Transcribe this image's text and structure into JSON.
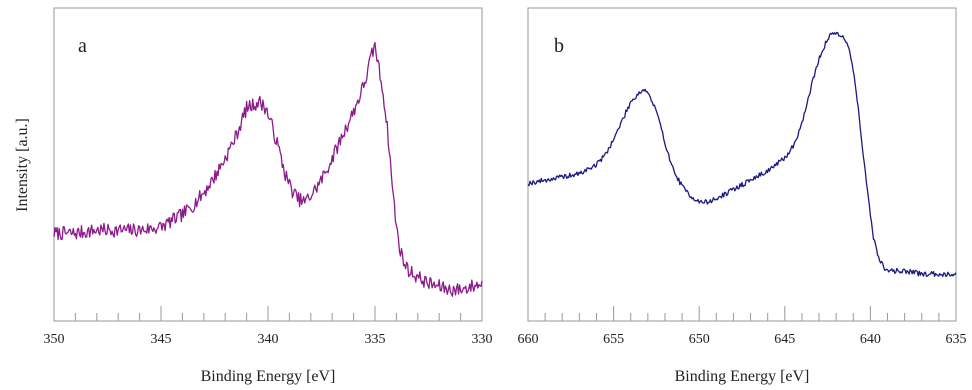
{
  "chart_data": [
    {
      "type": "line",
      "panel_label": "a",
      "xlabel": "Binding Energy [eV]",
      "ylabel": "Intensity [a.u.]",
      "xlim": [
        350,
        330
      ],
      "ylim": [
        0,
        100
      ],
      "x_reversed": true,
      "y_tick_labels": false,
      "grid": false,
      "x_ticks": [
        350,
        345,
        340,
        335,
        330
      ],
      "x_tick_labels": [
        "350",
        "345",
        "340",
        "335",
        "330"
      ],
      "line_color": "#8B1A8B",
      "noise": 2.2,
      "series": [
        {
          "x": [
            350,
            349,
            348,
            347,
            346,
            345,
            344.5,
            344,
            343.5,
            343,
            342.5,
            342,
            341.5,
            341,
            340.7,
            340.4,
            340.1,
            339.8,
            339.5,
            339.2,
            338.9,
            338.6,
            338.3,
            338,
            337.6,
            337.2,
            336.8,
            336.4,
            336,
            335.7,
            335.4,
            335.2,
            335.0,
            334.8,
            334.6,
            334.4,
            334.2,
            334.0,
            333.8,
            333.6,
            333.4,
            333.0,
            332.5,
            332,
            331.5,
            331,
            330.5,
            330
          ],
          "y": [
            28,
            28,
            29,
            29,
            29,
            30,
            32,
            34,
            37,
            41,
            46,
            52,
            59,
            68,
            69,
            70,
            68,
            62,
            55,
            47,
            42,
            39,
            38,
            40,
            44,
            49,
            55,
            61,
            67,
            72,
            78,
            84,
            88,
            80,
            72,
            60,
            44,
            30,
            22,
            18,
            16,
            14,
            12,
            11,
            10,
            10,
            11,
            12
          ]
        }
      ]
    },
    {
      "type": "line",
      "panel_label": "b",
      "xlabel": "Binding Energy [eV]",
      "xlim": [
        660,
        635
      ],
      "ylim": [
        0,
        100
      ],
      "x_reversed": true,
      "y_tick_labels": false,
      "grid": false,
      "x_ticks": [
        660,
        655,
        650,
        645,
        640,
        635
      ],
      "x_tick_labels": [
        "660",
        "655",
        "650",
        "645",
        "640",
        "635"
      ],
      "line_color": "#1A1A80",
      "noise": 0.8,
      "series": [
        {
          "x": [
            660,
            659,
            658,
            657,
            656,
            655.5,
            655,
            654.5,
            654,
            653.5,
            653.2,
            653,
            652.5,
            652,
            651.5,
            651,
            650.5,
            650,
            649.5,
            649,
            648,
            647,
            646,
            645.5,
            645,
            644.5,
            644,
            643.5,
            643,
            642.5,
            642.2,
            641.9,
            641.6,
            641.3,
            641.0,
            640.7,
            640.4,
            640.1,
            639.8,
            639.5,
            639.2,
            639.0,
            638.5,
            638,
            637,
            636,
            635
          ],
          "y": [
            44,
            45,
            46,
            47,
            50,
            53,
            58,
            64,
            70,
            73,
            74,
            73,
            67,
            57,
            48,
            43,
            40,
            38,
            38,
            39,
            42,
            45,
            48,
            50,
            52,
            56,
            63,
            74,
            84,
            90,
            92,
            92,
            91,
            88,
            80,
            68,
            52,
            38,
            26,
            20,
            17,
            16,
            16,
            16,
            15,
            15,
            15
          ]
        }
      ]
    }
  ]
}
